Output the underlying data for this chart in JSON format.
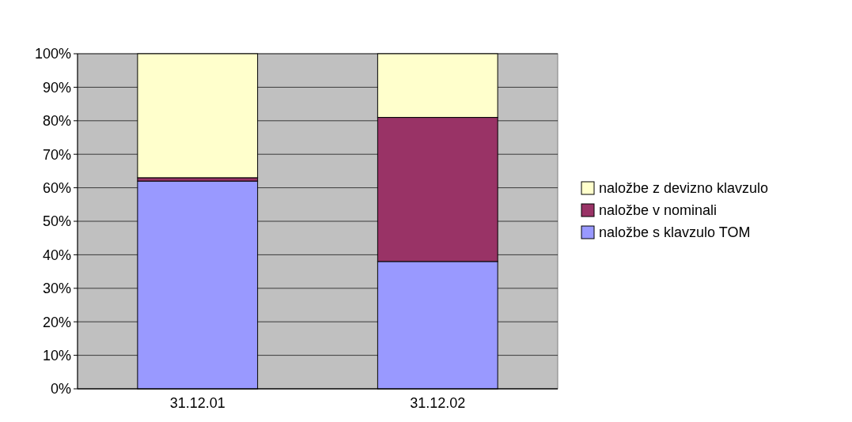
{
  "chart_data": {
    "type": "bar",
    "stacked": true,
    "categories": [
      "31.12.01",
      "31.12.02"
    ],
    "series": [
      {
        "name": "naložbe s klavzulo TOM",
        "color": "#9999ff",
        "values": [
          62,
          38
        ]
      },
      {
        "name": "naložbe v nominali",
        "color": "#993366",
        "values": [
          1,
          43
        ]
      },
      {
        "name": "naložbe z devizno klavzulo",
        "color": "#ffffcc",
        "values": [
          37,
          19
        ]
      }
    ],
    "ylim": [
      0,
      100
    ],
    "yticks": [
      {
        "value": 0,
        "label": "0%"
      },
      {
        "value": 10,
        "label": "10%"
      },
      {
        "value": 20,
        "label": "20%"
      },
      {
        "value": 30,
        "label": "30%"
      },
      {
        "value": 40,
        "label": "40%"
      },
      {
        "value": 50,
        "label": "50%"
      },
      {
        "value": 60,
        "label": "60%"
      },
      {
        "value": 70,
        "label": "70%"
      },
      {
        "value": 80,
        "label": "80%"
      },
      {
        "value": 90,
        "label": "90%"
      },
      {
        "value": 100,
        "label": "100%"
      }
    ],
    "grid": "y",
    "legend": "right"
  }
}
